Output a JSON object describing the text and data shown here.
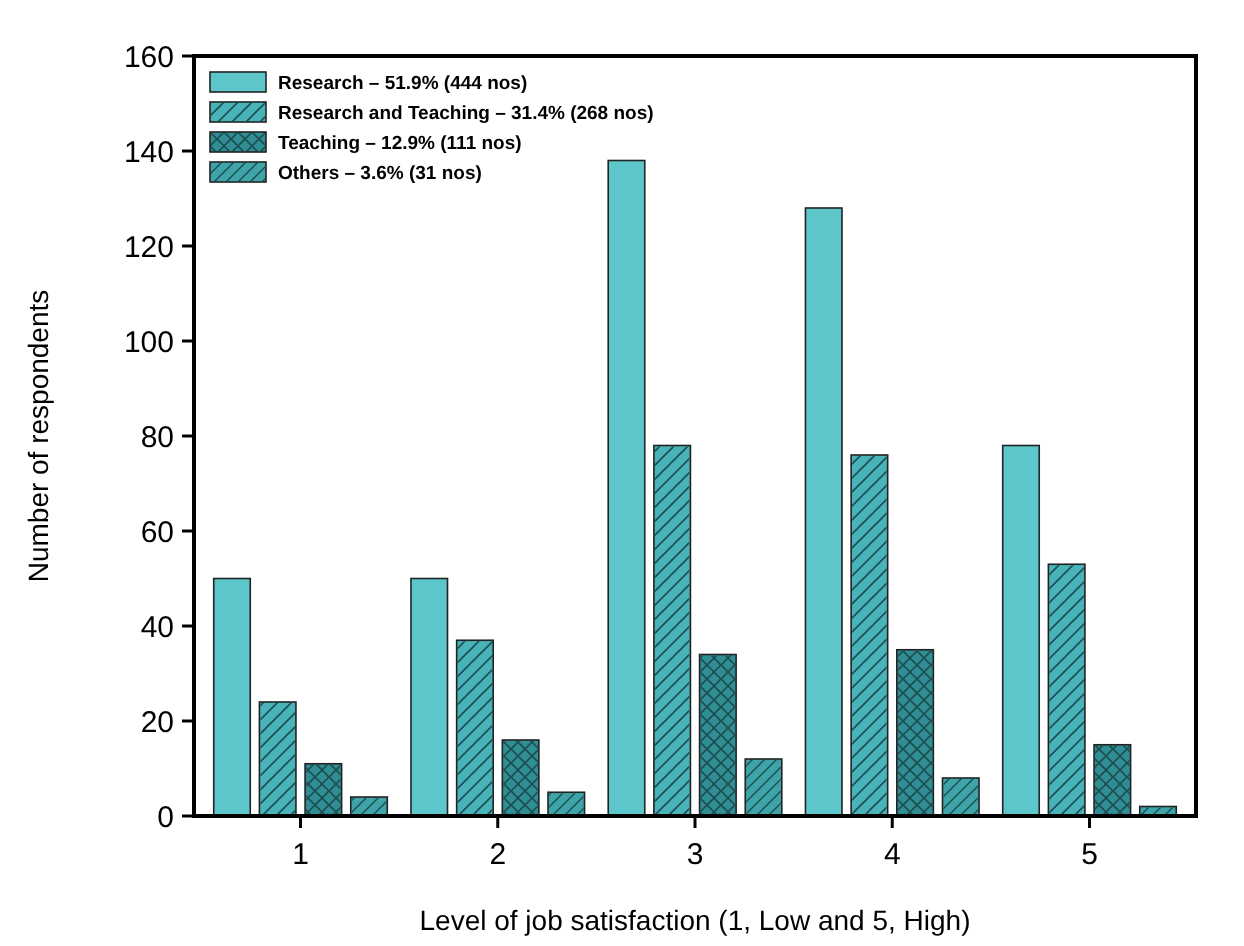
{
  "chart_data": {
    "type": "bar",
    "xlabel": "Level of job satisfaction (1, Low and 5, High)",
    "ylabel": "Number of respondents",
    "categories": [
      "1",
      "2",
      "3",
      "4",
      "5"
    ],
    "series": [
      {
        "name": "Research – 51.9% (444 nos)",
        "color": "#5cc6cb",
        "values": [
          50,
          50,
          138,
          128,
          78
        ]
      },
      {
        "name": "Research and Teaching – 31.4% (268 nos)",
        "color": "#48b3b8",
        "values": [
          24,
          37,
          78,
          76,
          53
        ]
      },
      {
        "name": "Teaching – 12.9% (111 nos)",
        "color": "#2f8e93",
        "values": [
          11,
          16,
          34,
          35,
          15
        ]
      },
      {
        "name": "Others – 3.6% (31 nos)",
        "color": "#3ea4a9",
        "values": [
          4,
          5,
          12,
          8,
          2
        ]
      }
    ],
    "ylim": [
      0,
      160
    ],
    "yticks": [
      0,
      20,
      40,
      60,
      80,
      100,
      120,
      140,
      160
    ],
    "grid": false,
    "legend": "top left"
  }
}
